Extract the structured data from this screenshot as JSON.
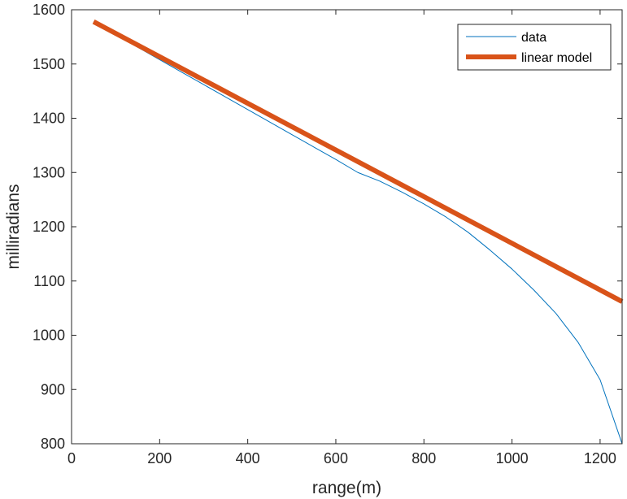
{
  "chart_data": {
    "type": "line",
    "xlabel": "range(m)",
    "ylabel": "milliradians",
    "xlim": [
      0,
      1250
    ],
    "ylim": [
      800,
      1600
    ],
    "xticks": [
      0,
      200,
      400,
      600,
      800,
      1000,
      1200
    ],
    "yticks": [
      800,
      900,
      1000,
      1100,
      1200,
      1300,
      1400,
      1500,
      1600
    ],
    "grid": false,
    "legend_position": "top-right",
    "series": [
      {
        "name": "data",
        "color": "#0072BD",
        "width": "thin",
        "x": [
          50,
          100,
          150,
          200,
          250,
          300,
          350,
          400,
          450,
          500,
          550,
          600,
          650,
          700,
          750,
          800,
          850,
          900,
          950,
          1000,
          1050,
          1100,
          1150,
          1200,
          1250
        ],
        "y": [
          1578,
          1554,
          1531,
          1508,
          1485,
          1462,
          1439,
          1416,
          1393,
          1370,
          1347,
          1324,
          1300,
          1284,
          1264,
          1242,
          1218,
          1190,
          1157,
          1122,
          1083,
          1040,
          987,
          918,
          800
        ]
      },
      {
        "name": "linear model",
        "color": "#D95319",
        "width": "thick",
        "x": [
          50,
          1250
        ],
        "y": [
          1578,
          1062
        ]
      }
    ]
  }
}
